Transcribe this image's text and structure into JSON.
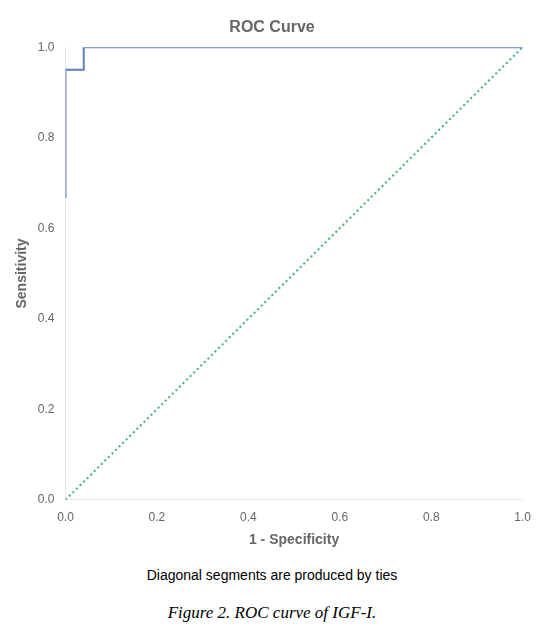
{
  "chart_data": {
    "type": "line",
    "title": "ROC Curve",
    "x_label": "1 - Specificity",
    "y_label": "Sensitivity",
    "xlim": [
      0.0,
      1.0
    ],
    "ylim": [
      0.0,
      1.0
    ],
    "xticks": [
      {
        "value": 0.0,
        "label": "0.0"
      },
      0.2,
      0.4,
      0.6,
      0.8,
      {
        "value": 1.0,
        "label": "1.0"
      }
    ],
    "yticks": [
      {
        "value": 0.0,
        "label": "0.0"
      },
      0.2,
      0.4,
      0.6,
      0.8,
      {
        "value": 1.0,
        "label": "1.0"
      }
    ],
    "grid": false,
    "series": [
      {
        "x": [
          0.0,
          1.0
        ],
        "values": [
          0.0,
          1.0
        ],
        "color": "#3CB371",
        "line_style": "dotted"
      },
      {
        "x": [
          0.0,
          0.0,
          0.04,
          0.04,
          0.2,
          0.2,
          1.0
        ],
        "values": [
          0.667,
          0.95,
          0.95,
          1.0,
          1.0,
          1.0,
          1.0
        ],
        "color": "#5B7FBF",
        "line_style": "solid"
      }
    ],
    "annotations": [
      "Diagonal segments are produced by ties",
      "Figure 2. ROC curve of IGF-I."
    ]
  }
}
